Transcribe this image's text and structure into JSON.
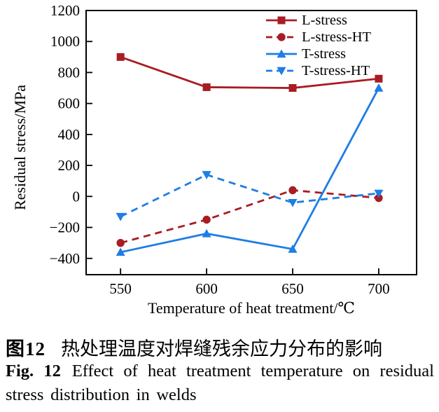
{
  "figure": {
    "caption_zh_label": "图12",
    "caption_zh_text": "热处理温度对焊缝残余应力分布的影响",
    "caption_en_label": "Fig. 12",
    "caption_en_text": "Effect of heat treatment temperature on residual stress distribution in welds"
  },
  "colors": {
    "red": "#a81c23",
    "blue": "#1e7de6",
    "axis": "#000000",
    "background": "#ffffff"
  },
  "chart_data": {
    "type": "line",
    "title": "",
    "xlabel": "Temperature of heat treatment/℃",
    "ylabel": "Residual stress/MPa",
    "x": [
      550,
      600,
      650,
      700
    ],
    "series": [
      {
        "name": "L-stress",
        "color": "#a81c23",
        "line": "solid",
        "marker": "square",
        "values": [
          900,
          705,
          700,
          760
        ]
      },
      {
        "name": "L-stress-HT",
        "color": "#a81c23",
        "line": "dashed",
        "marker": "circle",
        "values": [
          -300,
          -150,
          40,
          -10
        ]
      },
      {
        "name": "T-stress",
        "color": "#1e7de6",
        "line": "solid",
        "marker": "triangle-up",
        "values": [
          -360,
          -240,
          -340,
          700
        ]
      },
      {
        "name": "T-stress-HT",
        "color": "#1e7de6",
        "line": "dashed",
        "marker": "triangle-down",
        "values": [
          -130,
          140,
          -40,
          20
        ]
      }
    ],
    "xlim": [
      530,
      722
    ],
    "ylim": [
      -505,
      1200
    ],
    "xticks": [
      550,
      600,
      650,
      700
    ],
    "yticks": [
      1200,
      1000,
      800,
      600,
      400,
      200,
      0,
      -200,
      -400
    ],
    "grid": false,
    "legend_position": "top-right-inside",
    "frame": "full-box"
  }
}
